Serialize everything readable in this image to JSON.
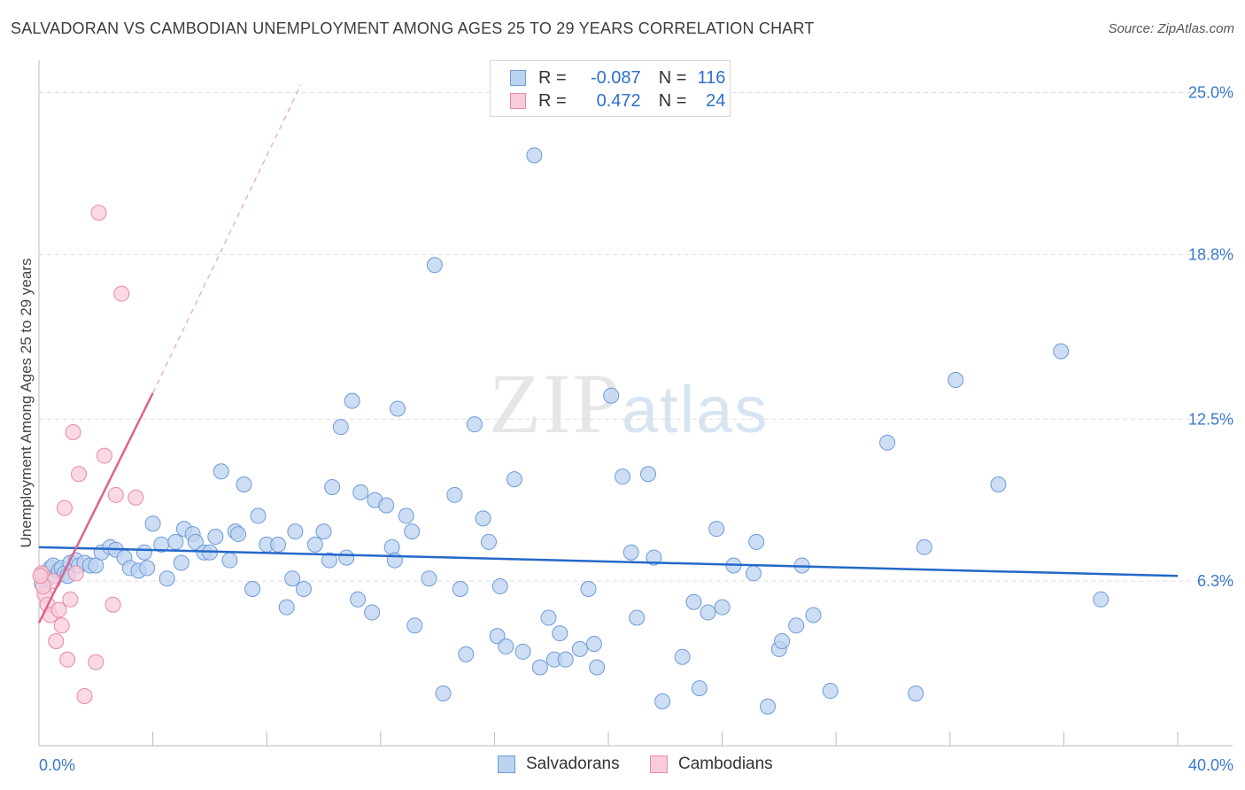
{
  "title": "SALVADORAN VS CAMBODIAN UNEMPLOYMENT AMONG AGES 25 TO 29 YEARS CORRELATION CHART",
  "source": "Source: ZipAtlas.com",
  "watermark": {
    "zip": "ZIP",
    "atlas": "atlas"
  },
  "legend": {
    "rows": [
      {
        "r_label": "R =",
        "r_value": "-0.087",
        "n_label": "N =",
        "n_value": "116",
        "color": "#a9c6ec"
      },
      {
        "r_label": "R =",
        "r_value": "0.472",
        "n_label": "N =",
        "n_value": "24",
        "color": "#f4b6c8"
      }
    ]
  },
  "bottom_legend": [
    {
      "label": "Salvadorans",
      "color": "#a9c6ec"
    },
    {
      "label": "Cambodians",
      "color": "#f4b6c8"
    }
  ],
  "colors": {
    "blue_fill": "#bcd3f0",
    "blue_stroke": "#6d9ad8",
    "blue_line": "#2468c8",
    "pink_fill": "#f9ccd9",
    "pink_stroke": "#e58aa6",
    "pink_line": "#e0628c",
    "tick_text": "#3a78c9",
    "grid": "#e0e0e0"
  },
  "chart_data": {
    "type": "scatter",
    "title": "SALVADORAN VS CAMBODIAN UNEMPLOYMENT AMONG AGES 25 TO 29 YEARS CORRELATION CHART",
    "xlabel": "",
    "ylabel": "Unemployment Among Ages 25 to 29 years",
    "xlim": [
      0,
      40
    ],
    "ylim": [
      0,
      25.9
    ],
    "x_tick_labels": [
      "0.0%",
      "40.0%"
    ],
    "y_ticks": [
      6.3,
      12.5,
      18.8,
      25.0
    ],
    "y_tick_labels": [
      "6.3%",
      "12.5%",
      "18.8%",
      "25.0%"
    ],
    "grid": "horizontal dashed",
    "legend_position": "top-center",
    "series": [
      {
        "name": "Salvadorans",
        "trend": {
          "x": [
            0,
            40
          ],
          "y": [
            7.6,
            6.5
          ]
        },
        "points": [
          [
            0.2,
            6.6
          ],
          [
            0.3,
            6.4
          ],
          [
            0.4,
            6.8
          ],
          [
            0.5,
            6.9
          ],
          [
            0.6,
            6.5
          ],
          [
            0.7,
            6.7
          ],
          [
            0.8,
            6.8
          ],
          [
            0.9,
            6.6
          ],
          [
            1.0,
            6.5
          ],
          [
            1.1,
            7.0
          ],
          [
            1.3,
            7.1
          ],
          [
            1.4,
            6.9
          ],
          [
            1.6,
            7.0
          ],
          [
            1.8,
            6.9
          ],
          [
            2.0,
            6.9
          ],
          [
            2.2,
            7.4
          ],
          [
            2.5,
            7.6
          ],
          [
            2.7,
            7.5
          ],
          [
            3.0,
            7.2
          ],
          [
            3.2,
            6.8
          ],
          [
            3.5,
            6.7
          ],
          [
            3.7,
            7.4
          ],
          [
            3.8,
            6.8
          ],
          [
            4.0,
            8.5
          ],
          [
            4.3,
            7.7
          ],
          [
            4.5,
            6.4
          ],
          [
            4.8,
            7.8
          ],
          [
            5.0,
            7.0
          ],
          [
            5.1,
            8.3
          ],
          [
            5.4,
            8.1
          ],
          [
            5.5,
            7.8
          ],
          [
            5.8,
            7.4
          ],
          [
            6.0,
            7.4
          ],
          [
            6.2,
            8.0
          ],
          [
            6.4,
            10.5
          ],
          [
            6.7,
            7.1
          ],
          [
            6.9,
            8.2
          ],
          [
            7.0,
            8.1
          ],
          [
            7.2,
            10.0
          ],
          [
            7.5,
            6.0
          ],
          [
            7.7,
            8.8
          ],
          [
            8.0,
            7.7
          ],
          [
            8.4,
            7.7
          ],
          [
            8.7,
            5.3
          ],
          [
            8.9,
            6.4
          ],
          [
            9.0,
            8.2
          ],
          [
            9.3,
            6.0
          ],
          [
            9.7,
            7.7
          ],
          [
            10.0,
            8.2
          ],
          [
            10.2,
            7.1
          ],
          [
            10.3,
            9.9
          ],
          [
            10.6,
            12.2
          ],
          [
            10.8,
            7.2
          ],
          [
            11.0,
            13.2
          ],
          [
            11.2,
            5.6
          ],
          [
            11.3,
            9.7
          ],
          [
            11.7,
            5.1
          ],
          [
            11.8,
            9.4
          ],
          [
            12.2,
            9.2
          ],
          [
            12.4,
            7.6
          ],
          [
            12.5,
            7.1
          ],
          [
            12.6,
            12.9
          ],
          [
            12.9,
            8.8
          ],
          [
            13.1,
            8.2
          ],
          [
            13.2,
            4.6
          ],
          [
            13.7,
            6.4
          ],
          [
            13.9,
            18.4
          ],
          [
            14.2,
            2.0
          ],
          [
            14.6,
            9.6
          ],
          [
            14.8,
            6.0
          ],
          [
            15.0,
            3.5
          ],
          [
            15.3,
            12.3
          ],
          [
            15.6,
            8.7
          ],
          [
            15.8,
            7.8
          ],
          [
            16.1,
            4.2
          ],
          [
            16.2,
            6.1
          ],
          [
            16.4,
            3.8
          ],
          [
            16.7,
            10.2
          ],
          [
            17.0,
            3.6
          ],
          [
            17.4,
            22.6
          ],
          [
            17.6,
            3.0
          ],
          [
            17.9,
            4.9
          ],
          [
            18.1,
            3.3
          ],
          [
            18.3,
            4.3
          ],
          [
            18.5,
            3.3
          ],
          [
            19.0,
            3.7
          ],
          [
            19.3,
            6.0
          ],
          [
            19.5,
            3.9
          ],
          [
            19.6,
            3.0
          ],
          [
            20.1,
            13.4
          ],
          [
            20.5,
            10.3
          ],
          [
            20.8,
            7.4
          ],
          [
            21.0,
            4.9
          ],
          [
            21.4,
            10.4
          ],
          [
            21.6,
            7.2
          ],
          [
            21.9,
            1.7
          ],
          [
            22.6,
            3.4
          ],
          [
            23.0,
            5.5
          ],
          [
            23.2,
            2.2
          ],
          [
            23.5,
            5.1
          ],
          [
            23.8,
            8.3
          ],
          [
            24.0,
            5.3
          ],
          [
            24.4,
            6.9
          ],
          [
            25.1,
            6.6
          ],
          [
            25.2,
            7.8
          ],
          [
            25.6,
            1.5
          ],
          [
            26.0,
            3.7
          ],
          [
            26.1,
            4.0
          ],
          [
            26.6,
            4.6
          ],
          [
            26.8,
            6.9
          ],
          [
            27.2,
            5.0
          ],
          [
            27.8,
            2.1
          ],
          [
            29.8,
            11.6
          ],
          [
            30.8,
            2.0
          ],
          [
            31.1,
            7.6
          ],
          [
            32.2,
            14.0
          ],
          [
            33.7,
            10.0
          ],
          [
            35.9,
            15.1
          ],
          [
            37.3,
            5.6
          ],
          [
            0.1,
            6.2
          ]
        ],
        "fill": "#bcd3f0",
        "stroke": "#6d9ad8"
      },
      {
        "name": "Cambodians",
        "trend": {
          "x": [
            0,
            4.0
          ],
          "y": [
            4.7,
            13.5
          ]
        },
        "trend_dashed": {
          "x": [
            4.0,
            9.2
          ],
          "y": [
            13.5,
            25.3
          ]
        },
        "points": [
          [
            0.1,
            6.6
          ],
          [
            0.2,
            5.8
          ],
          [
            0.3,
            5.4
          ],
          [
            0.4,
            5.0
          ],
          [
            0.5,
            6.3
          ],
          [
            0.6,
            4.0
          ],
          [
            0.7,
            5.2
          ],
          [
            0.8,
            4.6
          ],
          [
            0.9,
            9.1
          ],
          [
            1.0,
            3.3
          ],
          [
            1.1,
            5.6
          ],
          [
            1.2,
            12.0
          ],
          [
            1.3,
            6.6
          ],
          [
            1.4,
            10.4
          ],
          [
            1.6,
            1.9
          ],
          [
            2.0,
            3.2
          ],
          [
            2.1,
            20.4
          ],
          [
            2.3,
            11.1
          ],
          [
            2.6,
            5.4
          ],
          [
            2.7,
            9.6
          ],
          [
            2.9,
            17.3
          ],
          [
            3.4,
            9.5
          ],
          [
            0.15,
            6.1
          ],
          [
            0.05,
            6.5
          ]
        ],
        "fill": "#f9ccd9",
        "stroke": "#e58aa6"
      }
    ]
  }
}
